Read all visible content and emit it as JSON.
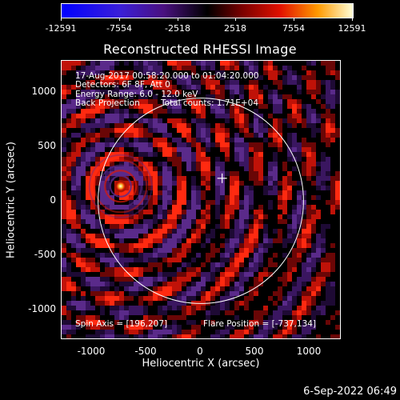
{
  "colorbar": {
    "ticks": [
      "-12591",
      "-7554",
      "-2518",
      "2518",
      "7554",
      "12591"
    ],
    "min": -12591,
    "max": 12591
  },
  "title": "Reconstructed RHESSI Image",
  "info": {
    "time": "17-Aug-2017 00:58:20.000 to 01:04:20.000",
    "detectors": "Detectors: 6F 8F, Att 0",
    "energy": "Energy Range: 6.0 - 12.0 keV",
    "method": "Back Projection",
    "counts": "Total counts: 1.71E+04",
    "spin_axis": "Spin Axis = [196,207]",
    "flare_position": "Flare Position = [-737,134]"
  },
  "axes": {
    "xlabel": "Heliocentric X (arcsec)",
    "ylabel": "Heliocentric Y (arcsec)",
    "xticks": [
      "-1000",
      "-500",
      "0",
      "500",
      "1000"
    ],
    "yticks": [
      "1000",
      "500",
      "0",
      "-500",
      "-1000"
    ],
    "xlim": [
      -1280,
      1280
    ],
    "ylim": [
      -1280,
      1280
    ]
  },
  "solar_disk": {
    "center_x": 0,
    "center_y": 0,
    "radius_arcsec": 944
  },
  "flare": {
    "x": -737,
    "y": 134
  },
  "spin_axis_marker": {
    "x": 196,
    "y": 207
  },
  "footer": {
    "date": "6-Sep-2022 06:49"
  },
  "colors": {
    "background": "#000000",
    "foreground": "#ffffff"
  }
}
